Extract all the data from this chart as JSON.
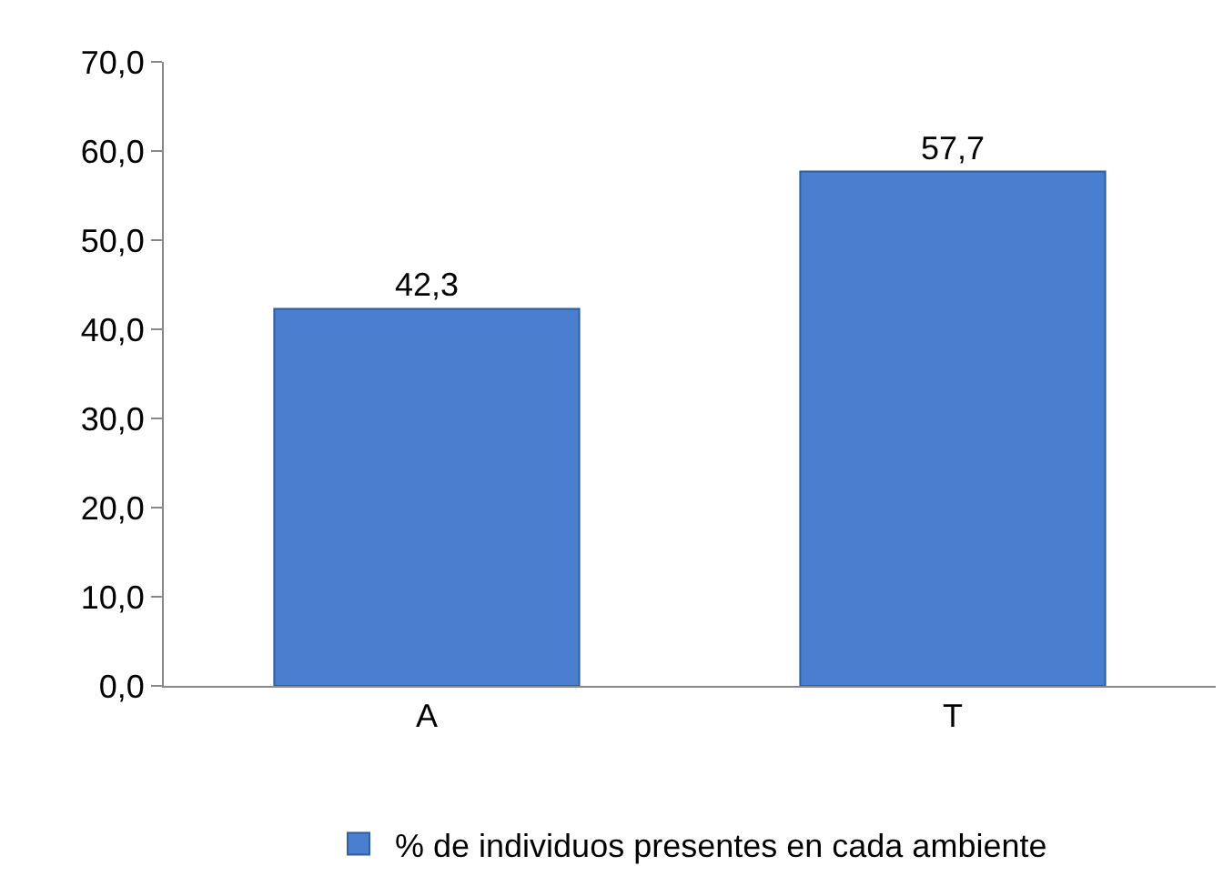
{
  "chart_data": {
    "type": "bar",
    "categories": [
      "A",
      "T"
    ],
    "series": [
      {
        "name": "% de individuos presentes en cada ambiente",
        "color": "#4a7fcf",
        "values": [
          42.3,
          57.7
        ],
        "value_labels": [
          "42,3",
          "57,7"
        ]
      }
    ],
    "ylim": [
      0,
      70
    ],
    "yticks": [
      {
        "value": 0,
        "label": "0,0"
      },
      {
        "value": 10,
        "label": "10,0"
      },
      {
        "value": 20,
        "label": "20,0"
      },
      {
        "value": 30,
        "label": "30,0"
      },
      {
        "value": 40,
        "label": "40,0"
      },
      {
        "value": 50,
        "label": "50,0"
      },
      {
        "value": 60,
        "label": "60,0"
      },
      {
        "value": 70,
        "label": "70,0"
      }
    ],
    "grid": false,
    "legend": "bottom"
  }
}
